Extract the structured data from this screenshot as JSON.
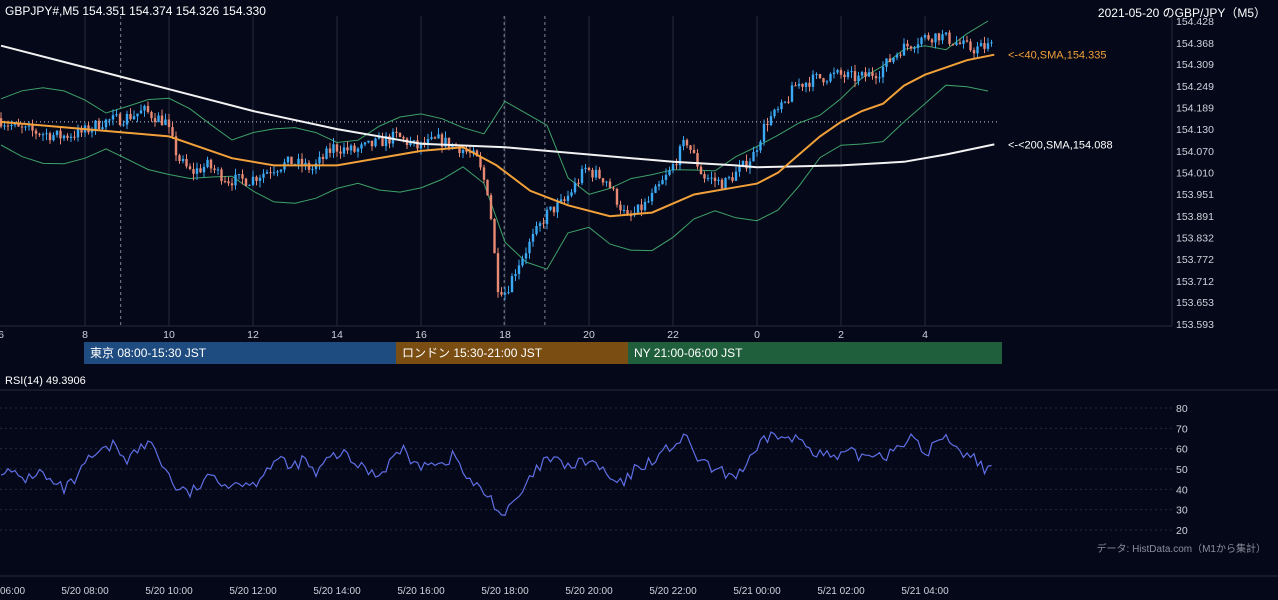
{
  "header": {
    "symbol_info": "GBPJPY#,M5 154.351 154.374 154.326 154.330",
    "date_title": "2021-05-20 のGBP/JPY（M5）"
  },
  "colors": {
    "background": "#050818",
    "bull": "#3aa8f2",
    "bear": "#e88a73",
    "sma40": "#f2a13a",
    "sma200": "#f2f2f2",
    "bands": "#3ea26a",
    "rsi": "#5f6fe6",
    "grid": "#252b3c",
    "tokyo": "#1f4c80",
    "london": "#7a4d12",
    "ny": "#1f5f3c"
  },
  "price_axis_labels": [
    "154.428",
    "154.368",
    "154.309",
    "154.249",
    "154.189",
    "154.130",
    "154.070",
    "154.010",
    "153.951",
    "153.891",
    "153.832",
    "153.772",
    "153.712",
    "153.653",
    "153.593"
  ],
  "hour_axis_labels": [
    "6",
    "8",
    "10",
    "12",
    "14",
    "16",
    "18",
    "20",
    "22",
    "0",
    "2",
    "4"
  ],
  "date_axis_labels": [
    "06:00",
    "5/20 08:00",
    "5/20 10:00",
    "5/20 12:00",
    "5/20 14:00",
    "5/20 16:00",
    "5/20 18:00",
    "5/20 20:00",
    "5/20 22:00",
    "5/21 00:00",
    "5/21 02:00",
    "5/21 04:00"
  ],
  "ma_labels": {
    "sma40": "<-<40,SMA,154.335",
    "sma200": "<-<200,SMA,154.088"
  },
  "sessions": {
    "tokyo": "東京 08:00-15:30 JST",
    "london": "ロンドン 15:30-21:00 JST",
    "ny": "NY 21:00-06:00 JST"
  },
  "rsi": {
    "title": "RSI(14) 49.3906",
    "axis_labels": [
      "80",
      "70",
      "60",
      "50",
      "40",
      "30",
      "20"
    ]
  },
  "source_note": "データ: HistData.com（M1から集計）",
  "chart_data": [
    {
      "type": "candlestick",
      "title": "2021-05-20 のGBP/JPY（M5）",
      "x_range_hours": [
        6,
        29.7
      ],
      "ylim": [
        153.593,
        154.428
      ],
      "reference_level": 154.15,
      "anchors": [
        [
          6.0,
          154.16
        ],
        [
          6.5,
          154.13
        ],
        [
          7.0,
          154.12
        ],
        [
          7.5,
          154.11
        ],
        [
          8.0,
          154.12
        ],
        [
          8.5,
          154.15
        ],
        [
          9.0,
          154.16
        ],
        [
          9.5,
          154.18
        ],
        [
          10.0,
          154.15
        ],
        [
          10.3,
          154.05
        ],
        [
          10.6,
          154.01
        ],
        [
          11.0,
          154.03
        ],
        [
          11.5,
          153.99
        ],
        [
          12.0,
          153.99
        ],
        [
          12.5,
          154.02
        ],
        [
          13.0,
          154.04
        ],
        [
          13.5,
          154.02
        ],
        [
          14.0,
          154.08
        ],
        [
          14.5,
          154.07
        ],
        [
          15.0,
          154.09
        ],
        [
          15.5,
          154.11
        ],
        [
          16.0,
          154.08
        ],
        [
          16.5,
          154.1
        ],
        [
          17.0,
          154.08
        ],
        [
          17.4,
          154.05
        ],
        [
          17.7,
          153.95
        ],
        [
          17.9,
          153.7
        ],
        [
          18.1,
          153.68
        ],
        [
          18.4,
          153.76
        ],
        [
          18.7,
          153.82
        ],
        [
          19.1,
          153.9
        ],
        [
          19.5,
          153.93
        ],
        [
          20.0,
          154.02
        ],
        [
          20.5,
          153.99
        ],
        [
          21.0,
          153.88
        ],
        [
          21.5,
          153.93
        ],
        [
          22.0,
          154.01
        ],
        [
          22.4,
          154.1
        ],
        [
          22.8,
          154.0
        ],
        [
          23.3,
          153.98
        ],
        [
          23.7,
          154.02
        ],
        [
          24.0,
          154.06
        ],
        [
          24.3,
          154.15
        ],
        [
          24.7,
          154.19
        ],
        [
          25.0,
          154.25
        ],
        [
          25.5,
          154.27
        ],
        [
          26.0,
          154.28
        ],
        [
          26.5,
          154.27
        ],
        [
          27.0,
          154.29
        ],
        [
          27.5,
          154.35
        ],
        [
          28.0,
          154.38
        ],
        [
          28.4,
          154.39
        ],
        [
          28.8,
          154.37
        ],
        [
          29.2,
          154.35
        ],
        [
          29.65,
          154.36
        ]
      ],
      "sma40": [
        [
          6.0,
          154.15
        ],
        [
          8.0,
          154.13
        ],
        [
          10.0,
          154.11
        ],
        [
          11.5,
          154.05
        ],
        [
          12.5,
          154.03
        ],
        [
          14.0,
          154.03
        ],
        [
          16.0,
          154.07
        ],
        [
          17.0,
          154.08
        ],
        [
          17.8,
          154.03
        ],
        [
          18.6,
          153.96
        ],
        [
          19.5,
          153.92
        ],
        [
          20.5,
          153.89
        ],
        [
          21.5,
          153.9
        ],
        [
          22.5,
          153.95
        ],
        [
          23.5,
          153.97
        ],
        [
          24.0,
          153.98
        ],
        [
          24.5,
          154.01
        ],
        [
          25.0,
          154.06
        ],
        [
          25.5,
          154.11
        ],
        [
          26.0,
          154.15
        ],
        [
          26.5,
          154.18
        ],
        [
          27.0,
          154.2
        ],
        [
          27.5,
          154.25
        ],
        [
          28.0,
          154.28
        ],
        [
          28.5,
          154.3
        ],
        [
          29.0,
          154.32
        ],
        [
          29.65,
          154.335
        ]
      ],
      "sma200": [
        [
          6.0,
          154.36
        ],
        [
          8.0,
          154.3
        ],
        [
          10.0,
          154.24
        ],
        [
          12.0,
          154.18
        ],
        [
          14.0,
          154.13
        ],
        [
          16.0,
          154.09
        ],
        [
          18.0,
          154.08
        ],
        [
          20.0,
          154.06
        ],
        [
          22.0,
          154.04
        ],
        [
          23.5,
          154.03
        ],
        [
          24.0,
          154.025
        ],
        [
          26.0,
          154.03
        ],
        [
          27.5,
          154.04
        ],
        [
          28.5,
          154.06
        ],
        [
          29.65,
          154.088
        ]
      ],
      "vertical_markers_hours": [
        8.85,
        17.98,
        18.95
      ]
    },
    {
      "type": "line",
      "title": "RSI(14) 49.3906",
      "ylim": [
        20,
        80
      ],
      "x_range_hours": [
        6,
        29.7
      ],
      "series": [
        {
          "values": [
            [
              6.0,
              50
            ],
            [
              6.3,
              47
            ],
            [
              6.6,
              45
            ],
            [
              6.9,
              49
            ],
            [
              7.2,
              43
            ],
            [
              7.5,
              40
            ],
            [
              7.8,
              45
            ],
            [
              8.1,
              55
            ],
            [
              8.4,
              58
            ],
            [
              8.7,
              62
            ],
            [
              9.0,
              55
            ],
            [
              9.3,
              60
            ],
            [
              9.6,
              63
            ],
            [
              9.9,
              50
            ],
            [
              10.2,
              40
            ],
            [
              10.5,
              38
            ],
            [
              10.8,
              43
            ],
            [
              11.1,
              47
            ],
            [
              11.4,
              42
            ],
            [
              11.7,
              44
            ],
            [
              12.0,
              42
            ],
            [
              12.3,
              50
            ],
            [
              12.6,
              55
            ],
            [
              12.9,
              50
            ],
            [
              13.2,
              55
            ],
            [
              13.5,
              47
            ],
            [
              13.8,
              55
            ],
            [
              14.1,
              58
            ],
            [
              14.4,
              53
            ],
            [
              14.7,
              50
            ],
            [
              15.0,
              47
            ],
            [
              15.3,
              55
            ],
            [
              15.6,
              60
            ],
            [
              15.9,
              50
            ],
            [
              16.2,
              55
            ],
            [
              16.5,
              52
            ],
            [
              16.8,
              57
            ],
            [
              17.1,
              45
            ],
            [
              17.4,
              40
            ],
            [
              17.7,
              35
            ],
            [
              17.9,
              27
            ],
            [
              18.1,
              30
            ],
            [
              18.4,
              38
            ],
            [
              18.7,
              48
            ],
            [
              19.0,
              55
            ],
            [
              19.3,
              53
            ],
            [
              19.6,
              51
            ],
            [
              19.9,
              54
            ],
            [
              20.2,
              52
            ],
            [
              20.5,
              45
            ],
            [
              20.8,
              42
            ],
            [
              21.1,
              50
            ],
            [
              21.4,
              53
            ],
            [
              21.7,
              57
            ],
            [
              22.0,
              62
            ],
            [
              22.3,
              65
            ],
            [
              22.6,
              55
            ],
            [
              22.9,
              50
            ],
            [
              23.2,
              48
            ],
            [
              23.5,
              47
            ],
            [
              23.8,
              53
            ],
            [
              24.1,
              62
            ],
            [
              24.4,
              68
            ],
            [
              24.7,
              64
            ],
            [
              25.0,
              65
            ],
            [
              25.3,
              60
            ],
            [
              25.6,
              57
            ],
            [
              25.9,
              55
            ],
            [
              26.2,
              58
            ],
            [
              26.5,
              56
            ],
            [
              26.8,
              58
            ],
            [
              27.1,
              57
            ],
            [
              27.4,
              63
            ],
            [
              27.7,
              65
            ],
            [
              28.0,
              57
            ],
            [
              28.3,
              64
            ],
            [
              28.6,
              65
            ],
            [
              28.9,
              58
            ],
            [
              29.2,
              55
            ],
            [
              29.5,
              49
            ],
            [
              29.65,
              49.39
            ]
          ]
        }
      ]
    }
  ]
}
